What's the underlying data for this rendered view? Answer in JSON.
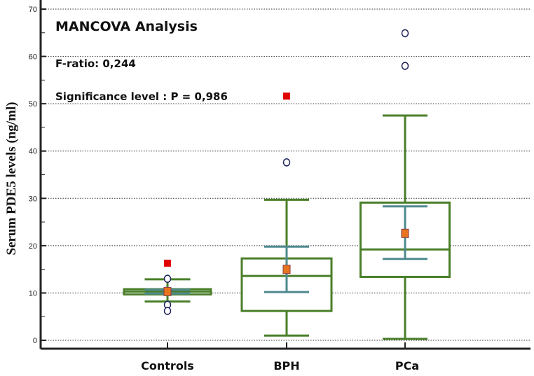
{
  "chart_data": {
    "type": "box",
    "title": "MANCOVA Analysis",
    "annotations": [
      "F-ratio: 0,244",
      "Significance level : P = 0,986"
    ],
    "xlabel": "",
    "ylabel": "Serum PDE5 levels (ng/ml)",
    "ylim": [
      0,
      70
    ],
    "yticks": [
      0,
      10,
      20,
      30,
      40,
      50,
      60,
      70
    ],
    "grid": "horizontal dotted",
    "categories": [
      "Controls",
      "BPH",
      "PCa"
    ],
    "groups": [
      {
        "name": "Controls",
        "whisker_low": 8.2,
        "q1": 9.7,
        "median": 10.3,
        "q3": 10.8,
        "whisker_high": 12.9,
        "mean": 10.3,
        "ci_low": 9.9,
        "ci_high": 10.7,
        "outliers": [
          13.0,
          7.5,
          6.2
        ],
        "far_outliers": [
          16.3
        ]
      },
      {
        "name": "BPH",
        "whisker_low": 1.0,
        "q1": 6.2,
        "median": 13.6,
        "q3": 17.3,
        "whisker_high": 29.7,
        "mean": 15.0,
        "ci_low": 10.2,
        "ci_high": 19.8,
        "outliers": [
          37.6
        ],
        "far_outliers": [
          51.6
        ]
      },
      {
        "name": "PCa",
        "whisker_low": 0.3,
        "q1": 13.4,
        "median": 19.2,
        "q3": 29.1,
        "whisker_high": 47.5,
        "mean": 22.6,
        "ci_low": 17.2,
        "ci_high": 28.3,
        "outliers": [
          58.0,
          64.9
        ],
        "far_outliers": []
      }
    ],
    "colors": {
      "box": "#4a7f2a",
      "ci": "#4e8a8f",
      "mean": "#e8741e",
      "far": "#e00000",
      "outlier": "#1a1f5a"
    }
  }
}
